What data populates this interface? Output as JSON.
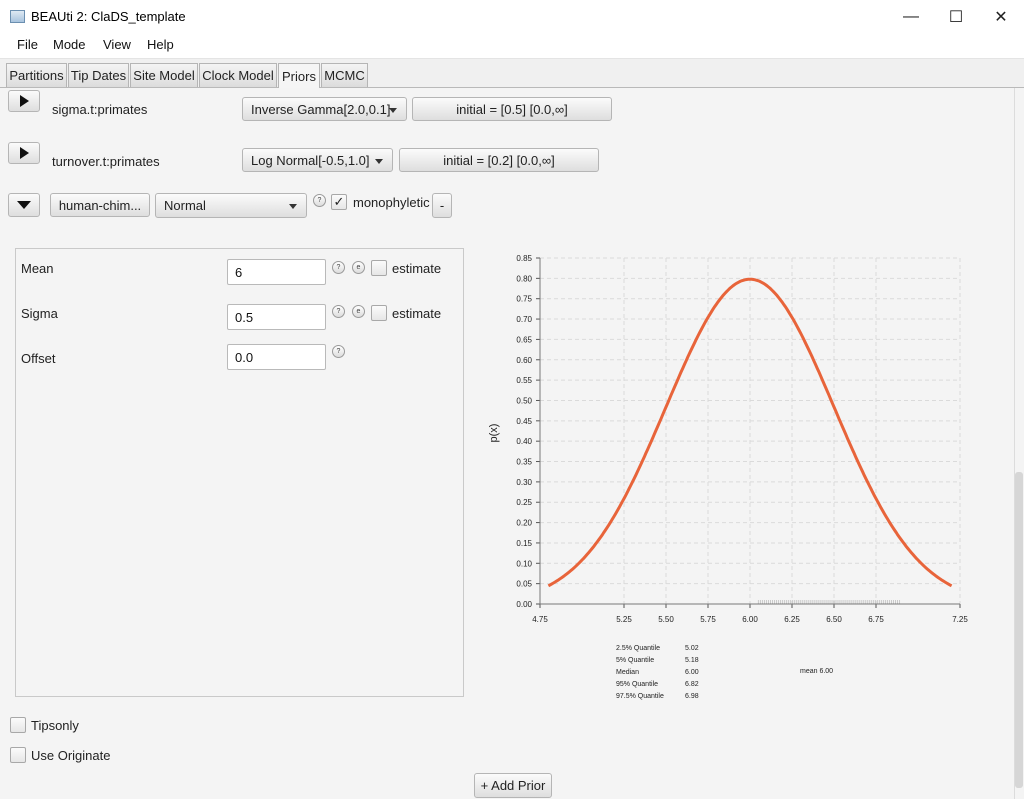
{
  "window": {
    "title": "BEAUti 2: ClaDS_template",
    "minimize": "—",
    "maximize": "☐",
    "close": "✕"
  },
  "menu": [
    "File",
    "Mode",
    "View",
    "Help"
  ],
  "tabs": [
    {
      "label": "Partitions",
      "active": false
    },
    {
      "label": "Tip Dates",
      "active": false
    },
    {
      "label": "Site Model",
      "active": false
    },
    {
      "label": "Clock Model",
      "active": false
    },
    {
      "label": "Priors",
      "active": true
    },
    {
      "label": "MCMC",
      "active": false
    }
  ],
  "priors": [
    {
      "name": "sigma.t:primates",
      "distribution": "Inverse Gamma[2.0,0.1]",
      "initial": "initial = [0.5] [0.0,∞]"
    },
    {
      "name": "turnover.t:primates",
      "distribution": "Log Normal[-0.5,1.0]",
      "initial": "initial = [0.2] [0.0,∞]"
    }
  ],
  "taxon_prior": {
    "taxon_button": "human-chim...",
    "distribution": "Normal",
    "help": "?",
    "monophyletic_checked": true,
    "monophyletic_label": "monophyletic",
    "remove_label": "-"
  },
  "params": [
    {
      "label": "Mean",
      "value": "6",
      "has_estimate": true,
      "estimate_label": "estimate"
    },
    {
      "label": "Sigma",
      "value": "0.5",
      "has_estimate": true,
      "estimate_label": "estimate"
    },
    {
      "label": "Offset",
      "value": "0.0",
      "has_estimate": false
    }
  ],
  "param_icons": {
    "help": "?",
    "edit": "e"
  },
  "checkboxes": {
    "tipsonly": "Tipsonly",
    "use_originate": "Use Originate"
  },
  "add_prior": "+ Add Prior",
  "colors": {
    "curve": "#e8643a",
    "accent": "#f0f0f0"
  },
  "chart_data": {
    "type": "line",
    "distribution": "Normal",
    "mean": 6.0,
    "sigma": 0.5,
    "ylabel": "p(x)",
    "xlim": [
      4.75,
      7.25
    ],
    "ylim": [
      0,
      0.85
    ],
    "xticks": [
      "4.75",
      "5.25",
      "5.50",
      "5.75",
      "6.00",
      "6.25",
      "6.50",
      "6.75",
      "7.25"
    ],
    "yticks": [
      "0.00",
      "0.05",
      "0.10",
      "0.15",
      "0.20",
      "0.25",
      "0.30",
      "0.35",
      "0.40",
      "0.45",
      "0.50",
      "0.55",
      "0.60",
      "0.65",
      "0.70",
      "0.75",
      "0.80",
      "0.85"
    ],
    "x": [
      4.8,
      4.9,
      5.0,
      5.1,
      5.2,
      5.3,
      5.4,
      5.5,
      5.6,
      5.7,
      5.8,
      5.9,
      6.0,
      6.1,
      6.2,
      6.3,
      6.4,
      6.5,
      6.6,
      6.7,
      6.8,
      6.9,
      7.0,
      7.1,
      7.2
    ],
    "y": [
      0.044,
      0.079,
      0.108,
      0.156,
      0.218,
      0.295,
      0.385,
      0.484,
      0.579,
      0.666,
      0.737,
      0.782,
      0.798,
      0.782,
      0.737,
      0.666,
      0.579,
      0.484,
      0.385,
      0.295,
      0.218,
      0.156,
      0.108,
      0.079,
      0.044
    ],
    "grid": true,
    "rug_range": [
      6.05,
      6.9
    ],
    "stats": [
      {
        "label": "2.5% Quantile",
        "value": "5.02"
      },
      {
        "label": "5% Quantile",
        "value": "5.18"
      },
      {
        "label": "Median",
        "value": "6.00"
      },
      {
        "label": "95% Quantile",
        "value": "6.82"
      },
      {
        "label": "97.5% Quantile",
        "value": "6.98"
      }
    ],
    "mean_label": "mean 6.00"
  }
}
